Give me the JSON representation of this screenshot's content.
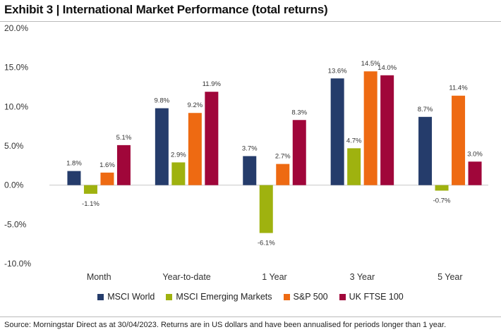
{
  "title": "Exhibit 3 | International Market Performance (total returns)",
  "source": "Source: Morningstar Direct as at 30/04/2023. Returns are in US dollars and have been annualised for periods longer than 1 year.",
  "chart_data": {
    "type": "bar",
    "title": "Exhibit 3 | International Market Performance (total returns)",
    "categories": [
      "Month",
      "Year-to-date",
      "1 Year",
      "3 Year",
      "5 Year"
    ],
    "ylim": [
      -10,
      20
    ],
    "yticks": [
      20,
      15,
      10,
      5,
      0,
      -5,
      -10
    ],
    "ytick_labels": [
      "20.0%",
      "15.0%",
      "10.0%",
      "5.0%",
      "0.0%",
      "-5.0%",
      "-10.0%"
    ],
    "grid": false,
    "legend_position": "bottom",
    "series": [
      {
        "name": "MSCI World",
        "color": "#253c6b",
        "values": [
          1.8,
          9.8,
          3.7,
          13.6,
          8.7
        ],
        "labels": [
          "1.8%",
          "9.8%",
          "3.7%",
          "13.6%",
          "8.7%"
        ]
      },
      {
        "name": "MSCI Emerging Markets",
        "color": "#9fb20f",
        "values": [
          -1.1,
          2.9,
          -6.1,
          4.7,
          -0.7
        ],
        "labels": [
          "-1.1%",
          "2.9%",
          "-6.1%",
          "4.7%",
          "-0.7%"
        ]
      },
      {
        "name": "S&P 500",
        "color": "#ee6a12",
        "values": [
          1.6,
          9.2,
          2.7,
          14.5,
          11.4
        ],
        "labels": [
          "1.6%",
          "9.2%",
          "2.7%",
          "14.5%",
          "11.4%"
        ]
      },
      {
        "name": "UK FTSE 100",
        "color": "#a0063a",
        "values": [
          5.1,
          11.9,
          8.3,
          14.0,
          3.0
        ],
        "labels": [
          "5.1%",
          "11.9%",
          "8.3%",
          "14.0%",
          "3.0%"
        ]
      }
    ]
  }
}
